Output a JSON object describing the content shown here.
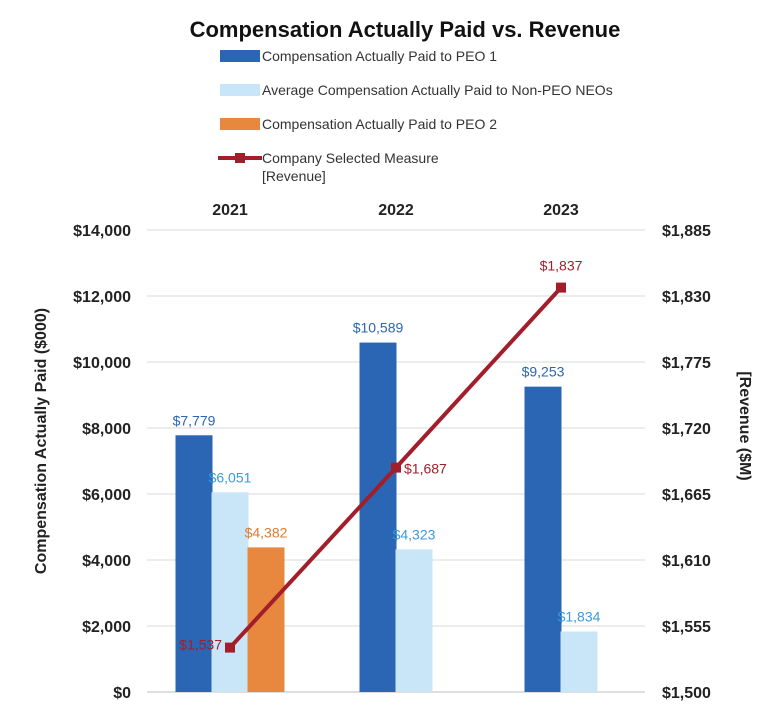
{
  "chart_data": {
    "type": "bar+line",
    "title": "Compensation Actually Paid vs. Revenue",
    "categories": [
      "2021",
      "2022",
      "2023"
    ],
    "ylabel": "Compensation Actually Paid ($000)",
    "y2label": "[Revenue ($M)",
    "ylim": [
      0,
      14000
    ],
    "y2lim": [
      1500,
      1885
    ],
    "yticks": [
      "$0",
      "$2,000",
      "$4,000",
      "$6,000",
      "$8,000",
      "$10,000",
      "$12,000",
      "$14,000"
    ],
    "y2ticks": [
      "$1,500",
      "$1,555",
      "$1,610",
      "$1,665",
      "$1,720",
      "$1,775",
      "$1,830",
      "$1,885"
    ],
    "series": [
      {
        "name": "Compensation Actually Paid to PEO 1",
        "kind": "bar",
        "color": "#2a66b3",
        "labelColor": "#2a66b3",
        "values": [
          7779,
          10589,
          9253
        ],
        "labels": [
          "$7,779",
          "$10,589",
          "$9,253"
        ]
      },
      {
        "name": "Average Compensation Actually Paid to Non-PEO NEOs",
        "kind": "bar",
        "color": "#c9e6f8",
        "labelColor": "#3a9bd8",
        "values": [
          6051,
          4323,
          1834
        ],
        "labels": [
          "$6,051",
          "$4,323",
          "$1,834"
        ]
      },
      {
        "name": "Compensation Actually Paid to PEO 2",
        "kind": "bar",
        "color": "#e8883f",
        "labelColor": "#e07a2f",
        "values": [
          4382,
          null,
          null
        ],
        "labels": [
          "$4,382",
          "",
          ""
        ]
      },
      {
        "name": "Company Selected Measure",
        "name2": "[Revenue]",
        "kind": "line",
        "axis": "y2",
        "color": "#a31e2b",
        "labelColor": "#a31e2b",
        "values": [
          1537,
          1687,
          1837
        ],
        "labels": [
          "$1,537",
          "$1,687",
          "$1,837"
        ]
      }
    ]
  }
}
